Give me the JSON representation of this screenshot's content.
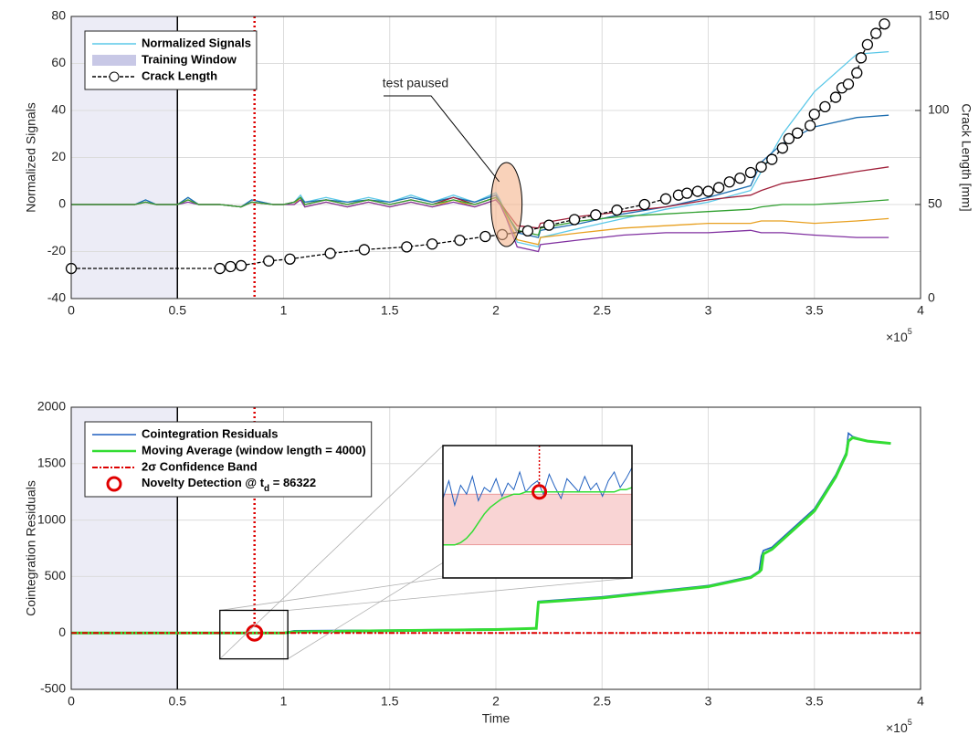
{
  "chart_data": [
    {
      "type": "line",
      "ylabel": "Normalized Signals",
      "y2label": "Crack Length [mm]",
      "x_multiplier": {
        "base": "×10",
        "exponent": "5"
      },
      "xlim": [
        0,
        4
      ],
      "xticks": [
        0,
        0.5,
        1,
        1.5,
        2,
        2.5,
        3,
        3.5,
        4
      ],
      "ylim": [
        -40,
        80
      ],
      "yticks": [
        -40,
        -20,
        0,
        20,
        40,
        60,
        80
      ],
      "y2lim": [
        0,
        150
      ],
      "y2ticks": [
        0,
        50,
        100,
        150
      ],
      "grid": true,
      "legend": "upper left",
      "training_window": {
        "name": "Training Window",
        "xlim": [
          0,
          0.5
        ],
        "color": "#c8c8e6"
      },
      "detection_x": 0.86322,
      "annotation": {
        "text": "test paused",
        "x": 2.05,
        "y": 0
      },
      "x": [
        0,
        0.3,
        0.35,
        0.4,
        0.5,
        0.55,
        0.6,
        0.7,
        0.8,
        0.85,
        0.95,
        1.0,
        1.05,
        1.08,
        1.1,
        1.2,
        1.3,
        1.4,
        1.5,
        1.6,
        1.7,
        1.8,
        1.9,
        2.0,
        2.02,
        2.05,
        2.1,
        2.2,
        2.21,
        2.4,
        2.6,
        2.8,
        3.0,
        3.2,
        3.25,
        3.35,
        3.5,
        3.7,
        3.85
      ],
      "series": [
        {
          "name": "Normalized Signals",
          "color": "#5bc8e8",
          "values": [
            0,
            0,
            2,
            0,
            0,
            3,
            0,
            0,
            -1,
            2,
            0,
            0,
            1,
            4,
            1,
            3,
            1,
            3,
            1,
            4,
            1,
            4,
            1,
            5,
            2,
            -5,
            -16,
            -18,
            -14,
            -10,
            -6,
            -2,
            1,
            6,
            14,
            30,
            48,
            64,
            65
          ]
        },
        {
          "color": "#1f6fb0",
          "values": [
            0,
            0,
            2,
            0,
            0,
            3,
            0,
            0,
            -1,
            2,
            0,
            0,
            1,
            3,
            1,
            2,
            1,
            2,
            1,
            3,
            1,
            3,
            1,
            4,
            1,
            -4,
            -12,
            -14,
            -11,
            -8,
            -4,
            -1,
            3,
            8,
            18,
            26,
            33,
            37,
            38
          ]
        },
        {
          "color": "#a0203a",
          "values": [
            0,
            0,
            1,
            0,
            0,
            2,
            0,
            0,
            -1,
            1,
            0,
            0,
            1,
            3,
            0,
            2,
            0,
            2,
            0,
            2,
            0,
            3,
            0,
            3,
            1,
            -3,
            -9,
            -10,
            -8,
            -5,
            -3,
            -1,
            2,
            4,
            6,
            9,
            11,
            14,
            16
          ]
        },
        {
          "color": "#e8a020",
          "values": [
            0,
            0,
            1,
            0,
            0,
            2,
            0,
            0,
            -1,
            1,
            0,
            0,
            0,
            3,
            -1,
            1,
            -1,
            1,
            -1,
            1,
            -1,
            2,
            -1,
            2,
            0,
            -5,
            -15,
            -17,
            -14,
            -12,
            -10,
            -9,
            -8,
            -8,
            -7,
            -7,
            -8,
            -7,
            -6
          ]
        },
        {
          "color": "#8030a0",
          "values": [
            0,
            0,
            1,
            0,
            0,
            1,
            0,
            0,
            -1,
            1,
            0,
            0,
            0,
            2,
            -1,
            1,
            -1,
            1,
            -1,
            1,
            -1,
            1,
            -1,
            2,
            0,
            -6,
            -18,
            -20,
            -17,
            -15,
            -13,
            -12,
            -12,
            -11,
            -12,
            -12,
            -13,
            -14,
            -14
          ]
        },
        {
          "color": "#30a030",
          "values": [
            0,
            0,
            1,
            0,
            0,
            2,
            0,
            0,
            -1,
            1,
            0,
            0,
            1,
            3,
            0,
            2,
            0,
            2,
            0,
            2,
            0,
            2,
            0,
            3,
            1,
            -4,
            -11,
            -13,
            -10,
            -7,
            -5,
            -4,
            -3,
            -2,
            -1,
            0,
            0,
            1,
            2
          ]
        },
        {
          "name": "Crack Length",
          "color": "#000000",
          "axis": "y2",
          "marker": "o",
          "dash": "4 2",
          "x": [
            0,
            0.7,
            0.75,
            0.8,
            0.93,
            1.03,
            1.22,
            1.38,
            1.58,
            1.7,
            1.83,
            1.95,
            2.03,
            2.15,
            2.25,
            2.37,
            2.47,
            2.57,
            2.7,
            2.8,
            2.86,
            2.9,
            2.95,
            3.0,
            3.05,
            3.1,
            3.15,
            3.2,
            3.25,
            3.3,
            3.35,
            3.38,
            3.42,
            3.48,
            3.5,
            3.55,
            3.6,
            3.63,
            3.66,
            3.7,
            3.72,
            3.75,
            3.79,
            3.83
          ],
          "values": [
            16,
            16,
            17,
            17.5,
            20,
            21,
            24,
            26,
            27.5,
            29,
            31,
            33,
            34,
            36,
            39,
            42,
            44.5,
            47,
            50,
            53,
            55,
            56,
            57,
            57,
            59,
            62,
            64,
            67,
            70,
            74,
            80,
            85,
            88,
            92,
            98,
            102,
            107,
            112,
            114,
            120,
            128,
            135,
            141,
            146
          ]
        }
      ]
    },
    {
      "type": "line",
      "ylabel": "Cointegration Residuals",
      "xlabel": "Time",
      "x_multiplier": {
        "base": "×10",
        "exponent": "5"
      },
      "xlim": [
        0,
        4
      ],
      "xticks": [
        0,
        0.5,
        1,
        1.5,
        2,
        2.5,
        3,
        3.5,
        4
      ],
      "ylim": [
        -500,
        2000
      ],
      "yticks": [
        -500,
        0,
        500,
        1000,
        1500,
        2000
      ],
      "grid": true,
      "legend": "upper left",
      "training_window": {
        "xlim": [
          0,
          0.5
        ],
        "color": "#c8c8e6"
      },
      "series": [
        {
          "name": "Cointegration Residuals",
          "color": "#1f5fbf",
          "width": 1.5,
          "x": [
            0,
            1.0,
            1.05,
            1.5,
            2.0,
            2.18,
            2.19,
            2.2,
            2.5,
            3.0,
            3.2,
            3.24,
            3.25,
            3.26,
            3.3,
            3.5,
            3.6,
            3.65,
            3.66,
            3.68,
            3.75,
            3.86
          ],
          "values": [
            0,
            0,
            20,
            25,
            35,
            40,
            40,
            280,
            320,
            420,
            500,
            550,
            680,
            730,
            760,
            1100,
            1400,
            1600,
            1770,
            1740,
            1700,
            1680
          ]
        },
        {
          "name": "Moving Average (window length = 4000)",
          "color": "#33dd33",
          "width": 3,
          "x": [
            0,
            1.0,
            1.05,
            1.5,
            2.0,
            2.18,
            2.19,
            2.2,
            2.5,
            3.0,
            3.2,
            3.24,
            3.25,
            3.26,
            3.3,
            3.5,
            3.6,
            3.65,
            3.66,
            3.68,
            3.75,
            3.86
          ],
          "values": [
            0,
            0,
            10,
            20,
            30,
            40,
            40,
            270,
            310,
            410,
            490,
            540,
            560,
            700,
            740,
            1080,
            1380,
            1580,
            1700,
            1730,
            1700,
            1680
          ]
        },
        {
          "name": "2σ Confidence Band",
          "color": "#dd0000",
          "width": 2,
          "dash": "6 2 2 2",
          "x": [
            0,
            4
          ],
          "values": [
            0,
            0
          ]
        },
        {
          "name": {
            "text": "Novelty Detection @ t",
            "subscript": "d",
            "suffix": " = 86322"
          },
          "color": "#e00000",
          "marker": "ring",
          "x": [
            0.86322
          ],
          "values": [
            0
          ]
        }
      ],
      "inset": {
        "zoom_xlim": [
          0.7,
          1.02
        ],
        "zoom_ylim": [
          -230,
          200
        ],
        "ylim": [
          -30,
          30
        ],
        "band": [
          -15,
          8
        ],
        "detection_y": 9,
        "x": [
          0.7,
          0.71,
          0.72,
          0.73,
          0.74,
          0.75,
          0.76,
          0.77,
          0.78,
          0.79,
          0.8,
          0.81,
          0.82,
          0.83,
          0.84,
          0.85,
          0.86,
          0.87,
          0.88,
          0.89,
          0.9,
          0.91,
          0.92,
          0.93,
          0.94,
          0.95,
          0.96,
          0.97,
          0.98,
          0.99,
          1.0,
          1.01,
          1.02
        ],
        "residuals": [
          6,
          14,
          3,
          12,
          8,
          16,
          5,
          11,
          9,
          15,
          7,
          13,
          10,
          18,
          9,
          12,
          14,
          8,
          17,
          11,
          6,
          15,
          12,
          9,
          16,
          10,
          13,
          7,
          14,
          18,
          11,
          15,
          20
        ],
        "moving_average": [
          -15,
          -15,
          -15,
          -14,
          -12,
          -9,
          -5,
          -1,
          2,
          4,
          6,
          7,
          8,
          8,
          9,
          9,
          9,
          9,
          9,
          9,
          9,
          9,
          9,
          9,
          9,
          9,
          9,
          9,
          9,
          9,
          10,
          10,
          11
        ]
      }
    }
  ]
}
